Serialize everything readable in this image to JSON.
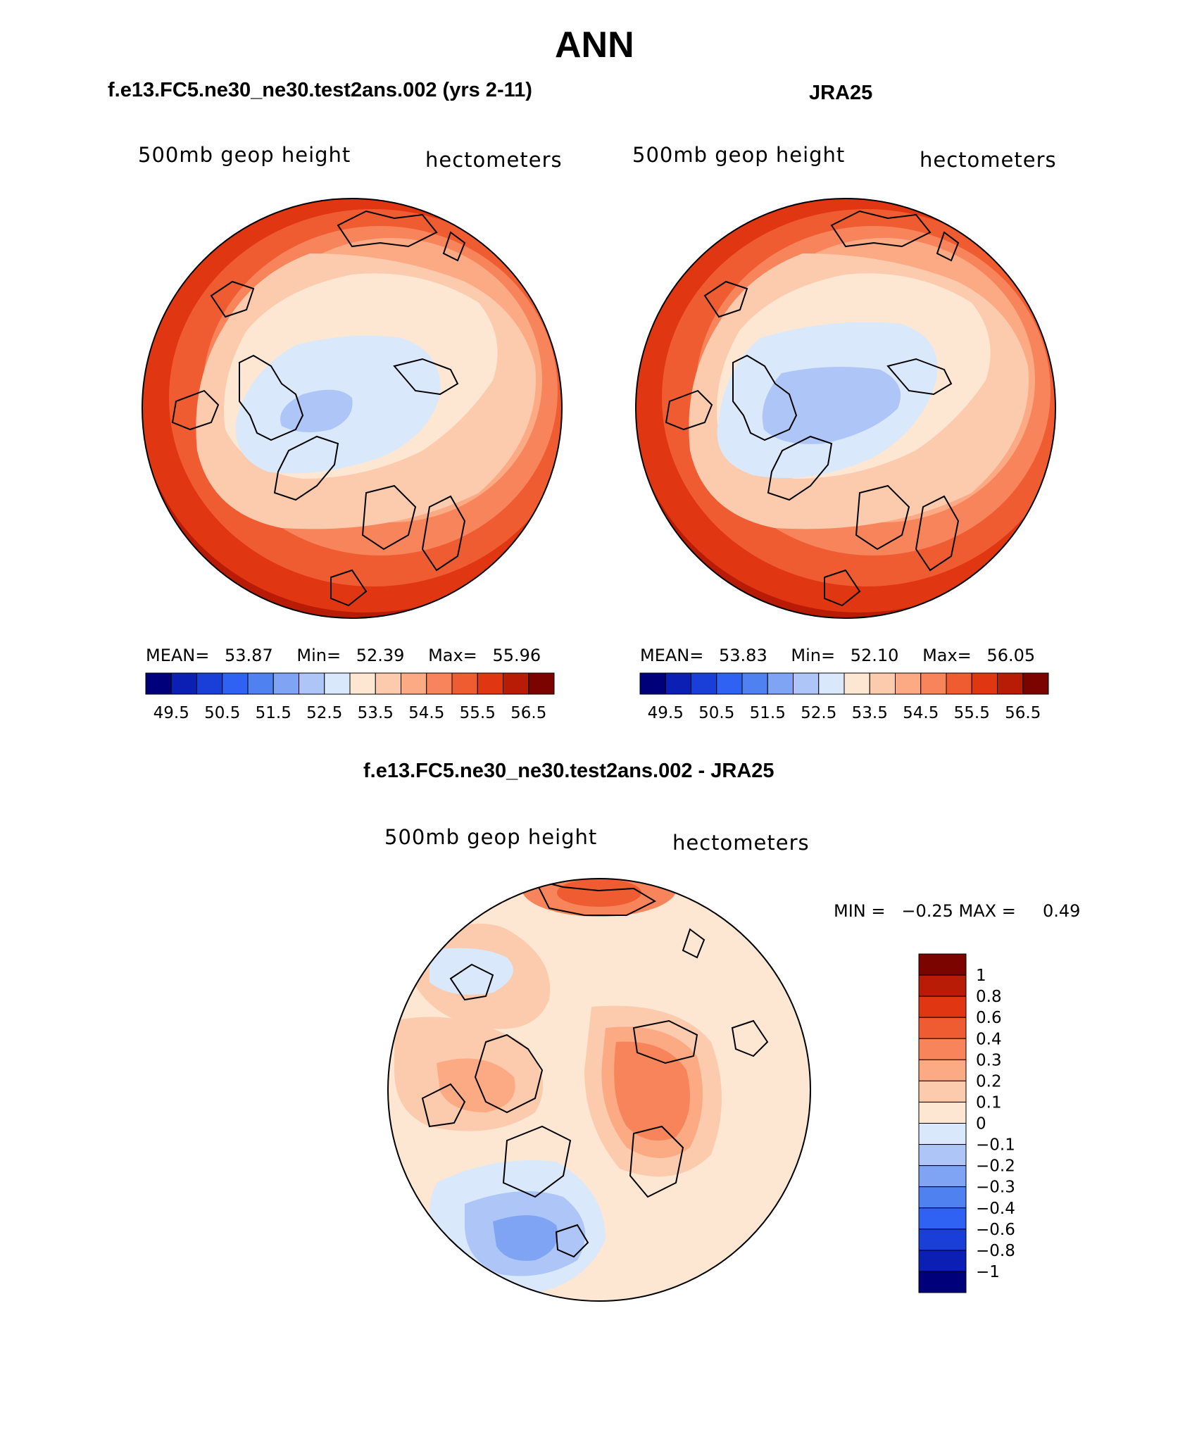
{
  "figure": {
    "title": "ANN"
  },
  "panels": [
    {
      "id": "model",
      "case_title": "f.e13.FC5.ne30_ne30.test2ans.002 (yrs 2-11)",
      "left_subtitle": "500mb geop height",
      "right_subtitle": "hectometers",
      "mean_label": "MEAN=",
      "mean_value": "53.87",
      "min_label": "Min=",
      "min_value": "52.39",
      "max_label": "Max=",
      "max_value": "55.96"
    },
    {
      "id": "obs",
      "case_title": "JRA25",
      "left_subtitle": "500mb geop height",
      "right_subtitle": "hectometers",
      "mean_label": "MEAN=",
      "mean_value": "53.83",
      "min_label": "Min=",
      "min_value": "52.10",
      "max_label": "Max=",
      "max_value": "56.05"
    },
    {
      "id": "diff",
      "case_title": "f.e13.FC5.ne30_ne30.test2ans.002 - JRA25",
      "left_subtitle": "500mb geop height",
      "right_subtitle": "hectometers",
      "minmax_text": "MIN =   −0.25 MAX =     0.49"
    }
  ],
  "chart_data": [
    {
      "type": "heatmap",
      "projection": "north polar stereographic",
      "title": "f.e13.FC5.ne30_ne30.test2ans.002 (yrs 2-11)",
      "variable": "500mb geop height",
      "units": "hectometers",
      "stats": {
        "mean": 53.87,
        "min": 52.39,
        "max": 55.96
      },
      "colorbar": {
        "orientation": "horizontal",
        "levels": [
          49.5,
          50.5,
          51.5,
          52.5,
          53.5,
          54.5,
          55.5,
          56.5
        ],
        "tick_labels": [
          "49.5",
          "50.5",
          "51.5",
          "52.5",
          "53.5",
          "54.5",
          "55.5",
          "56.5"
        ],
        "colors": [
          "#00007a",
          "#0c1fb4",
          "#1a3fd9",
          "#2f62f2",
          "#4f82f0",
          "#7ea4f3",
          "#aec6f7",
          "#d9e8fb",
          "#fde7d2",
          "#fccbae",
          "#fbaa84",
          "#f8845b",
          "#f05c31",
          "#e03712",
          "#b81c07",
          "#7b0300"
        ]
      }
    },
    {
      "type": "heatmap",
      "projection": "north polar stereographic",
      "title": "JRA25",
      "variable": "500mb geop height",
      "units": "hectometers",
      "stats": {
        "mean": 53.83,
        "min": 52.1,
        "max": 56.05
      },
      "colorbar": {
        "orientation": "horizontal",
        "levels": [
          49.5,
          50.5,
          51.5,
          52.5,
          53.5,
          54.5,
          55.5,
          56.5
        ],
        "tick_labels": [
          "49.5",
          "50.5",
          "51.5",
          "52.5",
          "53.5",
          "54.5",
          "55.5",
          "56.5"
        ],
        "colors": [
          "#00007a",
          "#0c1fb4",
          "#1a3fd9",
          "#2f62f2",
          "#4f82f0",
          "#7ea4f3",
          "#aec6f7",
          "#d9e8fb",
          "#fde7d2",
          "#fccbae",
          "#fbaa84",
          "#f8845b",
          "#f05c31",
          "#e03712",
          "#b81c07",
          "#7b0300"
        ]
      }
    },
    {
      "type": "heatmap",
      "projection": "north polar stereographic",
      "title": "f.e13.FC5.ne30_ne30.test2ans.002 - JRA25",
      "variable": "500mb geop height",
      "units": "hectometers",
      "stats": {
        "min": -0.25,
        "max": 0.49
      },
      "colorbar": {
        "orientation": "vertical",
        "levels": [
          1,
          0.8,
          0.6,
          0.4,
          0.3,
          0.2,
          0.1,
          0,
          -0.1,
          -0.2,
          -0.3,
          -0.4,
          -0.6,
          -0.8,
          -1
        ],
        "tick_labels": [
          "1",
          "0.8",
          "0.6",
          "0.4",
          "0.3",
          "0.2",
          "0.1",
          "0",
          "−0.1",
          "−0.2",
          "−0.3",
          "−0.4",
          "−0.6",
          "−0.8",
          "−1"
        ],
        "colors": [
          "#7b0300",
          "#b81c07",
          "#e03712",
          "#f05c31",
          "#f8845b",
          "#fbaa84",
          "#fccbae",
          "#fde7d2",
          "#d9e8fb",
          "#aec6f7",
          "#7ea4f3",
          "#4f82f0",
          "#2f62f2",
          "#1a3fd9",
          "#0c1fb4",
          "#00007a"
        ]
      }
    }
  ]
}
